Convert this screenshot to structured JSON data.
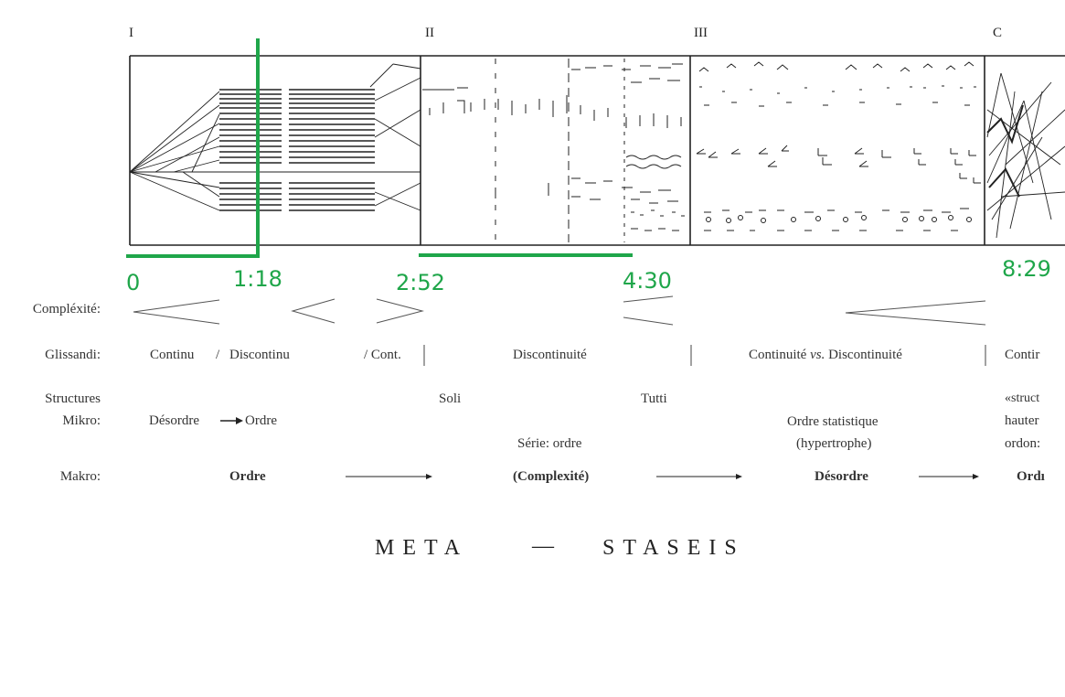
{
  "sections": [
    "I",
    "II",
    "III",
    "C"
  ],
  "time_markers": [
    "0",
    "1:18",
    "2:52",
    "4:30",
    "8:29"
  ],
  "rows": {
    "complexite": {
      "label": "Compléxité:"
    },
    "glissandi": {
      "label": "Glissandi:",
      "continu": "Continu",
      "slash1": "/",
      "discontinu": "Discontinu",
      "cont": "/ Cont.",
      "discontinuite": "Discontinuité",
      "cont_vs_a": "Continuité ",
      "cont_vs_b": "vs.",
      "cont_vs_c": " Discontinuité",
      "contin": "Contir"
    },
    "structures": {
      "label1": "Structures",
      "label2": "Mikro:",
      "soli": "Soli",
      "tutti": "Tutti",
      "desordre_a": "Désordre",
      "ordre": "Ordre",
      "serie": "Série: ordre",
      "ordre_stat": "Ordre statistique",
      "hypertrophe": "(hypertrophe)",
      "struct": "«struct",
      "hauter": "hauter",
      "ordoni": "ordon:"
    },
    "makro": {
      "label": "Makro:",
      "ordre": "Ordre",
      "complexite": "(Complexité)",
      "desordre": "Désordre",
      "ordr": "Ordı"
    }
  },
  "title": {
    "left": "META",
    "dash": "—",
    "right": "STASEIS"
  },
  "colors": {
    "annotation": "#1fa64a",
    "ink": "#222222"
  }
}
